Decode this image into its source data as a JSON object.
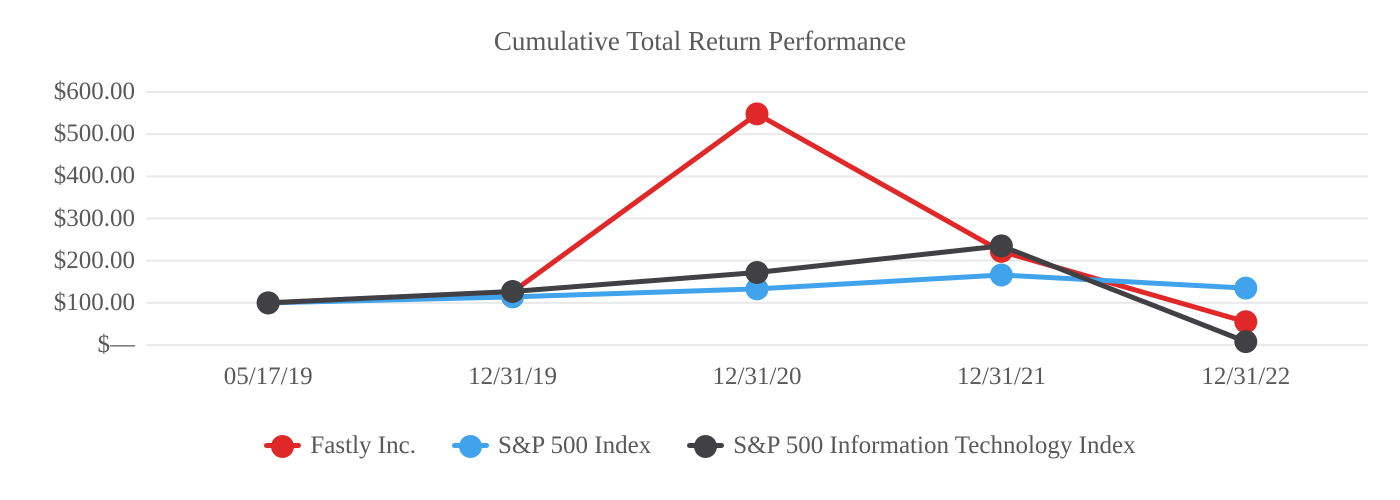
{
  "chart_data": {
    "type": "line",
    "title": "Cumulative Total Return Performance",
    "categories": [
      "05/17/19",
      "12/31/19",
      "12/31/20",
      "12/31/21",
      "12/31/22"
    ],
    "series": [
      {
        "name": "Fastly Inc.",
        "color": "#e02828",
        "values": [
          100,
          126,
          548,
          222,
          55
        ]
      },
      {
        "name": "S&P 500 Index",
        "color": "#41a3ec",
        "values": [
          100,
          114,
          133,
          166,
          135
        ]
      },
      {
        "name": "S&P 500 Information Technology Index",
        "color": "#414145",
        "values": [
          100,
          127,
          172,
          235,
          8
        ]
      }
    ],
    "yticks": [
      {
        "value": 0,
        "label": "$—"
      },
      {
        "value": 100,
        "label": "$100.00"
      },
      {
        "value": 200,
        "label": "$200.00"
      },
      {
        "value": 300,
        "label": "$300.00"
      },
      {
        "value": 400,
        "label": "$400.00"
      },
      {
        "value": 500,
        "label": "$500.00"
      },
      {
        "value": 600,
        "label": "$600.00"
      }
    ],
    "ylim": [
      0,
      600
    ],
    "xlabel": "",
    "ylabel": "",
    "grid": "horizontal",
    "legend_position": "bottom",
    "colors": {
      "gridline": "#e9e9e9",
      "text": "#595959",
      "background": "#ffffff"
    }
  }
}
